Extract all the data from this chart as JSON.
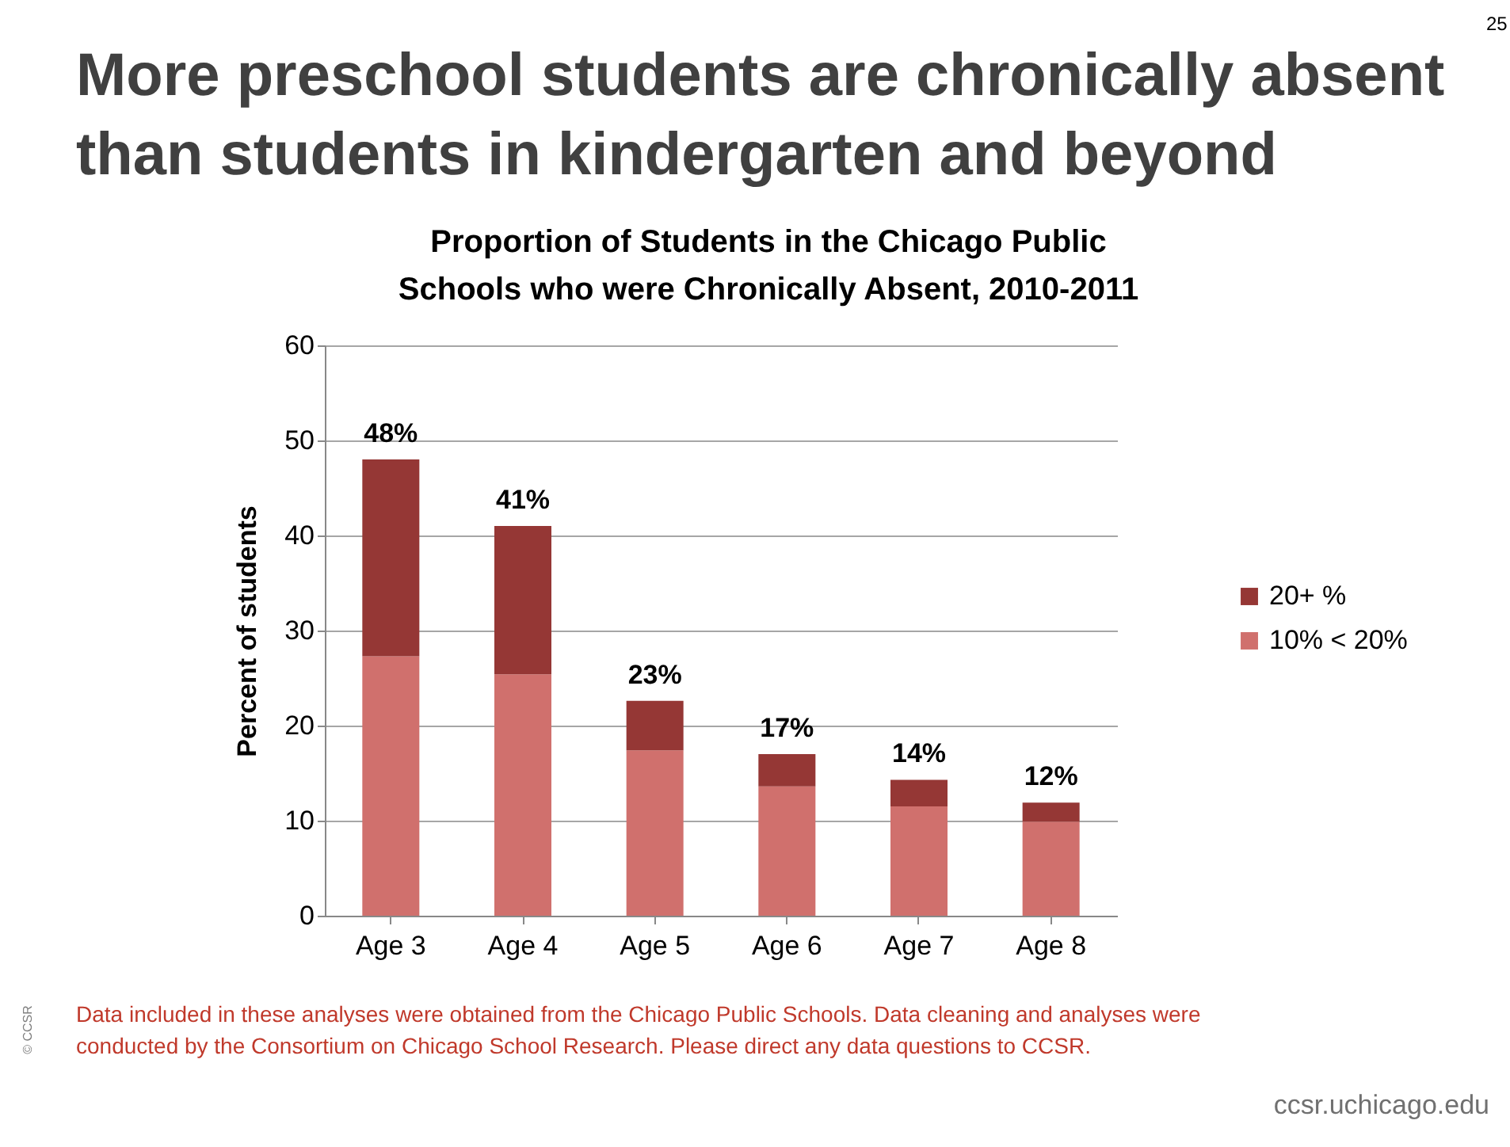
{
  "chart_data": {
    "type": "bar",
    "title": "More preschool students are chronically absent than students in kindergarten and beyond",
    "subtitle": "Proportion of Students in the Chicago Public Schools who were Chronically Absent, 2010-2011",
    "ylabel": "Percent of students",
    "categories": [
      "Age 3",
      "Age 4",
      "Age 5",
      "Age 6",
      "Age 7",
      "Age 8"
    ],
    "series": [
      {
        "name": "10% < 20%",
        "color": "#d0706d",
        "values": [
          27.3,
          25.4,
          17.4,
          13.6,
          11.5,
          9.9
        ]
      },
      {
        "name": "20+ %",
        "color": "#953735",
        "values": [
          20.7,
          15.6,
          5.2,
          3.4,
          2.8,
          2.0
        ]
      }
    ],
    "stacked": true,
    "totals": [
      "48%",
      "41%",
      "23%",
      "17%",
      "14%",
      "12%"
    ],
    "ylim": [
      0,
      60
    ],
    "yticks": [
      0,
      10,
      20,
      30,
      40,
      50,
      60
    ],
    "grid": "y",
    "legend": "right",
    "annotations": [
      "Data included in these analyses were obtained from the Chicago Public Schools. Data cleaning and analyses were conducted by the Consortium on Chicago School Research. Please direct any data questions to CCSR.",
      "25",
      "© CCSR",
      "ccsr.uchicago.edu"
    ]
  }
}
